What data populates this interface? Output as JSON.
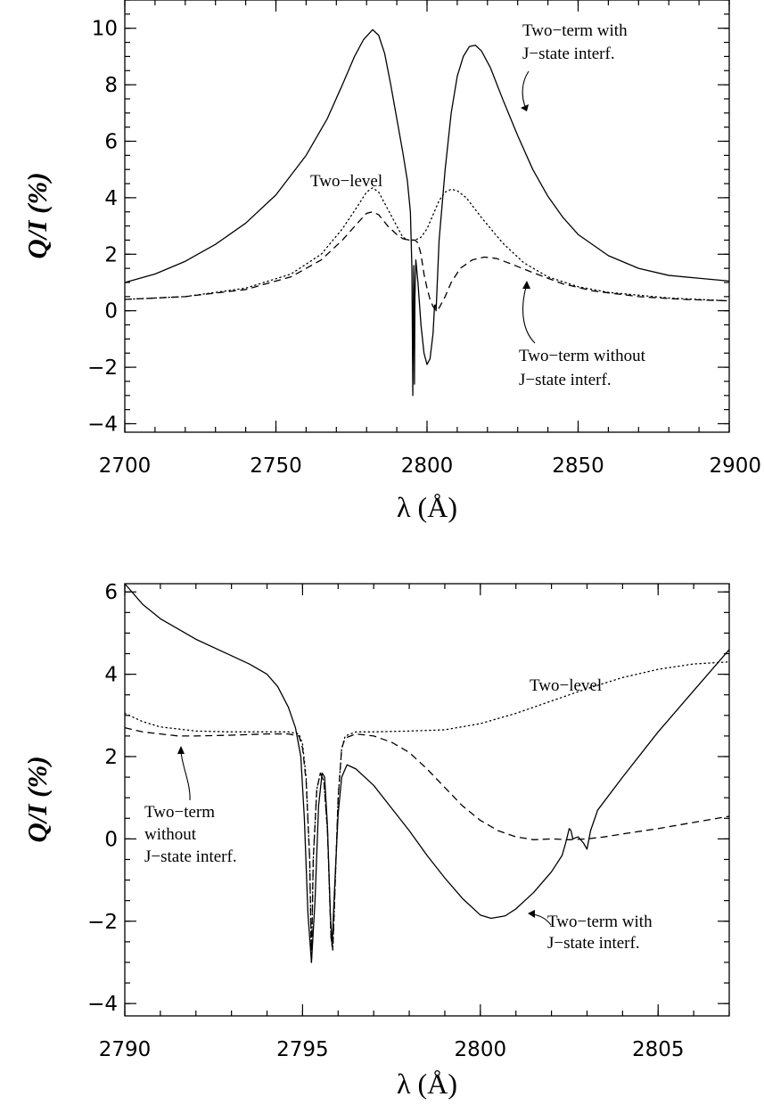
{
  "chart_data": [
    {
      "type": "line",
      "xlabel": "λ (Å)",
      "ylabel": "Q/I (%)",
      "xlim": [
        2700,
        2900
      ],
      "ylim": [
        -4.3,
        11
      ],
      "xticks": [
        2700,
        2750,
        2800,
        2850,
        2900
      ],
      "yticks": [
        -4,
        -2,
        0,
        2,
        4,
        6,
        8,
        10
      ],
      "x_minor_step": 10,
      "y_minor_step": 0.5,
      "series": [
        {
          "style": "solid",
          "points": [
            [
              2700,
              1.0
            ],
            [
              2710,
              1.3
            ],
            [
              2720,
              1.75
            ],
            [
              2730,
              2.35
            ],
            [
              2740,
              3.1
            ],
            [
              2750,
              4.1
            ],
            [
              2760,
              5.5
            ],
            [
              2767,
              6.8
            ],
            [
              2772,
              8.0
            ],
            [
              2776,
              9.0
            ],
            [
              2779,
              9.6
            ],
            [
              2782,
              9.95
            ],
            [
              2784,
              9.75
            ],
            [
              2786,
              9.1
            ],
            [
              2788,
              8.0
            ],
            [
              2790,
              6.8
            ],
            [
              2792,
              5.6
            ],
            [
              2793.5,
              4.6
            ],
            [
              2794.5,
              3.5
            ],
            [
              2795.0,
              1.5
            ],
            [
              2795.3,
              -3.0
            ],
            [
              2795.5,
              0.5
            ],
            [
              2795.6,
              1.6
            ],
            [
              2795.7,
              0.5
            ],
            [
              2795.85,
              -2.6
            ],
            [
              2796.0,
              0.5
            ],
            [
              2796.3,
              1.8
            ],
            [
              2797,
              1.0
            ],
            [
              2798,
              -0.5
            ],
            [
              2799,
              -1.5
            ],
            [
              2800,
              -1.9
            ],
            [
              2801,
              -1.7
            ],
            [
              2802,
              -0.8
            ],
            [
              2802.5,
              0.2
            ],
            [
              2802.8,
              0.2
            ],
            [
              2803,
              0.0
            ],
            [
              2803.2,
              0.5
            ],
            [
              2804,
              2.5
            ],
            [
              2806,
              5.0
            ],
            [
              2808,
              7.0
            ],
            [
              2810,
              8.3
            ],
            [
              2812,
              9.0
            ],
            [
              2814,
              9.35
            ],
            [
              2816,
              9.4
            ],
            [
              2818,
              9.2
            ],
            [
              2821,
              8.6
            ],
            [
              2825,
              7.5
            ],
            [
              2830,
              6.2
            ],
            [
              2835,
              5.0
            ],
            [
              2840,
              4.05
            ],
            [
              2845,
              3.3
            ],
            [
              2850,
              2.7
            ],
            [
              2860,
              1.95
            ],
            [
              2870,
              1.5
            ],
            [
              2880,
              1.25
            ],
            [
              2890,
              1.15
            ],
            [
              2900,
              1.05
            ]
          ]
        },
        {
          "style": "dotted",
          "points": [
            [
              2700,
              0.4
            ],
            [
              2720,
              0.5
            ],
            [
              2740,
              0.8
            ],
            [
              2755,
              1.3
            ],
            [
              2765,
              2.0
            ],
            [
              2772,
              2.9
            ],
            [
              2777,
              3.7
            ],
            [
              2780,
              4.2
            ],
            [
              2782,
              4.35
            ],
            [
              2784,
              4.2
            ],
            [
              2787,
              3.6
            ],
            [
              2790,
              3.0
            ],
            [
              2792,
              2.6
            ],
            [
              2794,
              2.5
            ],
            [
              2795,
              2.5
            ],
            [
              2796,
              2.5
            ],
            [
              2798,
              2.6
            ],
            [
              2800,
              2.9
            ],
            [
              2802,
              3.4
            ],
            [
              2804,
              3.9
            ],
            [
              2806,
              4.2
            ],
            [
              2808,
              4.3
            ],
            [
              2810,
              4.25
            ],
            [
              2813,
              4.0
            ],
            [
              2818,
              3.3
            ],
            [
              2825,
              2.4
            ],
            [
              2832,
              1.7
            ],
            [
              2840,
              1.2
            ],
            [
              2850,
              0.85
            ],
            [
              2860,
              0.65
            ],
            [
              2880,
              0.45
            ],
            [
              2900,
              0.35
            ]
          ]
        },
        {
          "style": "dashed",
          "points": [
            [
              2700,
              0.4
            ],
            [
              2720,
              0.5
            ],
            [
              2740,
              0.75
            ],
            [
              2755,
              1.2
            ],
            [
              2765,
              1.8
            ],
            [
              2772,
              2.5
            ],
            [
              2777,
              3.1
            ],
            [
              2780,
              3.45
            ],
            [
              2782,
              3.5
            ],
            [
              2784,
              3.4
            ],
            [
              2787,
              3.0
            ],
            [
              2790,
              2.7
            ],
            [
              2792,
              2.55
            ],
            [
              2794,
              2.5
            ],
            [
              2795,
              2.5
            ],
            [
              2796,
              2.5
            ],
            [
              2797,
              2.4
            ],
            [
              2798,
              2.0
            ],
            [
              2799,
              1.3
            ],
            [
              2800,
              0.8
            ],
            [
              2801,
              0.4
            ],
            [
              2802,
              0.15
            ],
            [
              2803,
              0.0
            ],
            [
              2804,
              0.1
            ],
            [
              2806,
              0.5
            ],
            [
              2808,
              1.0
            ],
            [
              2811,
              1.5
            ],
            [
              2815,
              1.8
            ],
            [
              2819,
              1.9
            ],
            [
              2823,
              1.85
            ],
            [
              2828,
              1.65
            ],
            [
              2835,
              1.35
            ],
            [
              2845,
              0.95
            ],
            [
              2855,
              0.7
            ],
            [
              2870,
              0.5
            ],
            [
              2885,
              0.4
            ],
            [
              2900,
              0.35
            ]
          ]
        }
      ],
      "annotations": [
        {
          "lines": [
            "Two−term with",
            "J−state interf."
          ]
        },
        {
          "lines": [
            "Two−level"
          ]
        },
        {
          "lines": [
            "Two−term without",
            "J−state interf."
          ]
        }
      ]
    },
    {
      "type": "line",
      "xlabel": "λ (Å)",
      "ylabel": "Q/I (%)",
      "xlim": [
        2790,
        2807
      ],
      "ylim": [
        -4.3,
        6.2
      ],
      "xticks": [
        2790,
        2795,
        2800,
        2805
      ],
      "yticks": [
        -4,
        -2,
        0,
        2,
        4,
        6
      ],
      "x_minor_step": 1,
      "y_minor_step": 0.5,
      "series": [
        {
          "style": "solid",
          "points": [
            [
              2790.0,
              6.2
            ],
            [
              2790.5,
              5.7
            ],
            [
              2791,
              5.35
            ],
            [
              2792,
              4.85
            ],
            [
              2793,
              4.45
            ],
            [
              2793.5,
              4.25
            ],
            [
              2794,
              4.0
            ],
            [
              2794.3,
              3.7
            ],
            [
              2794.6,
              3.2
            ],
            [
              2794.8,
              2.7
            ],
            [
              2794.95,
              2.0
            ],
            [
              2795.05,
              0.5
            ],
            [
              2795.15,
              -1.8
            ],
            [
              2795.25,
              -3.0
            ],
            [
              2795.35,
              -1.5
            ],
            [
              2795.45,
              0.8
            ],
            [
              2795.55,
              1.6
            ],
            [
              2795.62,
              1.5
            ],
            [
              2795.7,
              0.3
            ],
            [
              2795.78,
              -1.8
            ],
            [
              2795.83,
              -2.6
            ],
            [
              2795.9,
              -1.2
            ],
            [
              2796.0,
              0.6
            ],
            [
              2796.1,
              1.5
            ],
            [
              2796.25,
              1.8
            ],
            [
              2796.5,
              1.7
            ],
            [
              2797,
              1.3
            ],
            [
              2797.5,
              0.75
            ],
            [
              2798,
              0.2
            ],
            [
              2798.5,
              -0.4
            ],
            [
              2799,
              -0.95
            ],
            [
              2799.5,
              -1.45
            ],
            [
              2800,
              -1.85
            ],
            [
              2800.3,
              -1.93
            ],
            [
              2800.7,
              -1.87
            ],
            [
              2801,
              -1.7
            ],
            [
              2801.5,
              -1.3
            ],
            [
              2802,
              -0.8
            ],
            [
              2802.3,
              -0.4
            ],
            [
              2802.4,
              -0.1
            ],
            [
              2802.5,
              0.25
            ],
            [
              2802.55,
              0.2
            ],
            [
              2802.6,
              0.0
            ],
            [
              2802.75,
              0.05
            ],
            [
              2802.9,
              -0.1
            ],
            [
              2803.0,
              -0.25
            ],
            [
              2803.1,
              0.2
            ],
            [
              2803.3,
              0.7
            ],
            [
              2804,
              1.5
            ],
            [
              2805,
              2.6
            ],
            [
              2806,
              3.6
            ],
            [
              2807,
              4.6
            ]
          ]
        },
        {
          "style": "dotted",
          "points": [
            [
              2790,
              3.05
            ],
            [
              2790.5,
              2.85
            ],
            [
              2791,
              2.72
            ],
            [
              2792,
              2.62
            ],
            [
              2793,
              2.6
            ],
            [
              2794,
              2.6
            ],
            [
              2794.6,
              2.6
            ],
            [
              2794.9,
              2.55
            ],
            [
              2795.0,
              2.3
            ],
            [
              2795.1,
              1.5
            ],
            [
              2795.2,
              -0.5
            ],
            [
              2795.25,
              -3.0
            ],
            [
              2795.3,
              -0.5
            ],
            [
              2795.4,
              1.2
            ],
            [
              2795.5,
              1.6
            ],
            [
              2795.6,
              1.4
            ],
            [
              2795.7,
              0.2
            ],
            [
              2795.8,
              -2.4
            ],
            [
              2795.85,
              -2.7
            ],
            [
              2795.9,
              -1.5
            ],
            [
              2796.0,
              1.0
            ],
            [
              2796.1,
              2.2
            ],
            [
              2796.2,
              2.5
            ],
            [
              2796.5,
              2.6
            ],
            [
              2797,
              2.6
            ],
            [
              2798,
              2.62
            ],
            [
              2799,
              2.65
            ],
            [
              2800,
              2.8
            ],
            [
              2801,
              3.05
            ],
            [
              2802,
              3.35
            ],
            [
              2803,
              3.65
            ],
            [
              2804,
              3.92
            ],
            [
              2805,
              4.12
            ],
            [
              2806,
              4.25
            ],
            [
              2807,
              4.3
            ]
          ]
        },
        {
          "style": "dashed",
          "points": [
            [
              2790,
              2.7
            ],
            [
              2790.5,
              2.6
            ],
            [
              2791,
              2.55
            ],
            [
              2791.5,
              2.5
            ],
            [
              2792,
              2.5
            ],
            [
              2793,
              2.52
            ],
            [
              2794,
              2.55
            ],
            [
              2794.6,
              2.55
            ],
            [
              2794.9,
              2.5
            ],
            [
              2795.0,
              2.2
            ],
            [
              2795.1,
              1.4
            ],
            [
              2795.2,
              -0.5
            ],
            [
              2795.25,
              -3.0
            ],
            [
              2795.3,
              -0.5
            ],
            [
              2795.4,
              1.2
            ],
            [
              2795.5,
              1.6
            ],
            [
              2795.6,
              1.4
            ],
            [
              2795.7,
              0.2
            ],
            [
              2795.8,
              -2.4
            ],
            [
              2795.85,
              -2.7
            ],
            [
              2795.9,
              -1.5
            ],
            [
              2796.0,
              1.0
            ],
            [
              2796.1,
              2.2
            ],
            [
              2796.2,
              2.45
            ],
            [
              2796.5,
              2.55
            ],
            [
              2797,
              2.5
            ],
            [
              2797.5,
              2.35
            ],
            [
              2798,
              2.1
            ],
            [
              2798.5,
              1.7
            ],
            [
              2799,
              1.25
            ],
            [
              2799.5,
              0.8
            ],
            [
              2800,
              0.45
            ],
            [
              2800.5,
              0.2
            ],
            [
              2801,
              0.05
            ],
            [
              2801.5,
              -0.02
            ],
            [
              2802,
              0.0
            ],
            [
              2802.5,
              -0.02
            ],
            [
              2803,
              0.0
            ],
            [
              2803.5,
              0.05
            ],
            [
              2804,
              0.12
            ],
            [
              2805,
              0.25
            ],
            [
              2806,
              0.4
            ],
            [
              2807,
              0.55
            ]
          ]
        }
      ],
      "annotations": [
        {
          "lines": [
            "Two−level"
          ]
        },
        {
          "lines": [
            "Two−term",
            "without",
            "J−state interf."
          ]
        },
        {
          "lines": [
            "Two−term with",
            "J−state interf."
          ]
        }
      ]
    }
  ]
}
